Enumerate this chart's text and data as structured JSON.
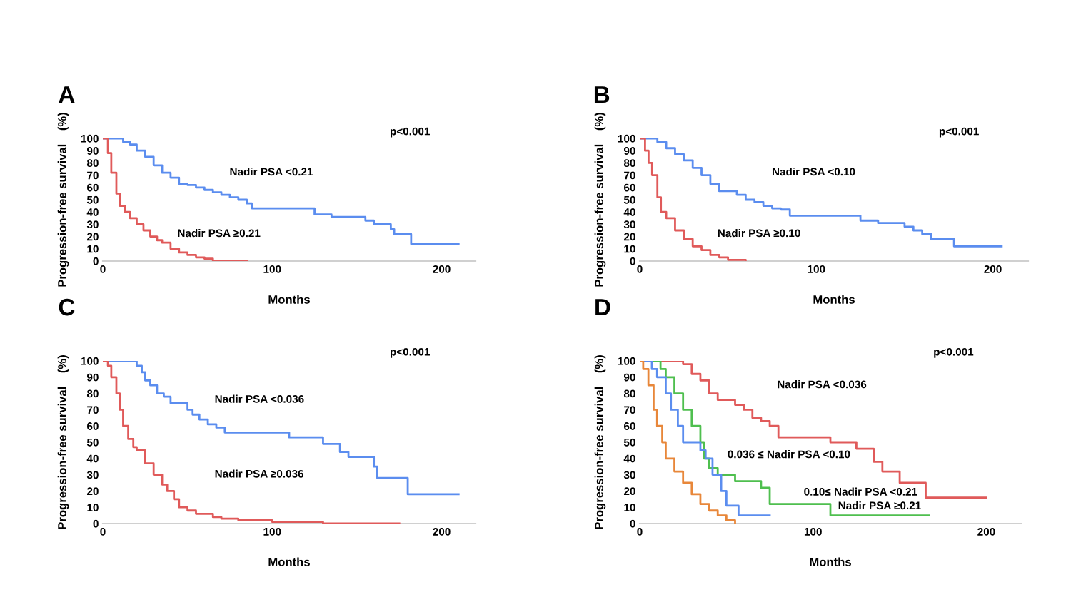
{
  "chart_data": [
    {
      "type": "step",
      "title": "A",
      "xlabel": "Months",
      "ylabel": "Progression-free survival    (%)",
      "xlim": [
        0,
        220
      ],
      "ylim": [
        0,
        100
      ],
      "xticks": [
        0,
        100,
        200
      ],
      "yticks": [
        0,
        10,
        20,
        30,
        40,
        50,
        60,
        70,
        80,
        90,
        100
      ],
      "series": [
        {
          "color": "#5b8def",
          "x": [
            0,
            8,
            12,
            16,
            20,
            25,
            30,
            35,
            40,
            45,
            50,
            55,
            60,
            65,
            70,
            75,
            80,
            85,
            88,
            125,
            135,
            155,
            160,
            170,
            172,
            182,
            210
          ],
          "values": [
            100,
            100,
            97,
            95,
            90,
            85,
            78,
            72,
            68,
            63,
            62,
            60,
            58,
            56,
            54,
            52,
            50,
            47,
            43,
            38,
            36,
            33,
            30,
            26,
            22,
            14,
            14
          ]
        },
        {
          "color": "#e05a5a",
          "x": [
            0,
            3,
            5,
            8,
            10,
            13,
            16,
            20,
            24,
            28,
            32,
            35,
            40,
            45,
            50,
            55,
            60,
            65,
            85
          ],
          "values": [
            100,
            88,
            72,
            55,
            45,
            40,
            35,
            30,
            25,
            20,
            17,
            15,
            10,
            7,
            5,
            3,
            2,
            0,
            0
          ]
        }
      ],
      "annotations": [
        "p<0.001",
        "Nadir PSA <0.21",
        "Nadir PSA ≥0.21"
      ]
    },
    {
      "type": "step",
      "title": "B",
      "xlabel": "Months",
      "ylabel": "Progression-free survival    (%)",
      "xlim": [
        0,
        220
      ],
      "ylim": [
        0,
        100
      ],
      "xticks": [
        0,
        100,
        200
      ],
      "yticks": [
        0,
        10,
        20,
        30,
        40,
        50,
        60,
        70,
        80,
        90,
        100
      ],
      "series": [
        {
          "color": "#5b8def",
          "x": [
            0,
            5,
            10,
            15,
            20,
            25,
            30,
            35,
            40,
            45,
            55,
            60,
            65,
            70,
            75,
            80,
            85,
            125,
            135,
            150,
            155,
            160,
            165,
            178,
            205
          ],
          "values": [
            100,
            100,
            97,
            92,
            87,
            82,
            76,
            70,
            63,
            57,
            54,
            50,
            48,
            45,
            43,
            42,
            37,
            33,
            31,
            28,
            25,
            22,
            18,
            12,
            12
          ]
        },
        {
          "color": "#e05a5a",
          "x": [
            0,
            3,
            5,
            7,
            10,
            12,
            15,
            20,
            25,
            30,
            35,
            40,
            45,
            50,
            60
          ],
          "values": [
            100,
            90,
            80,
            70,
            52,
            40,
            35,
            25,
            18,
            12,
            9,
            5,
            3,
            1,
            0
          ]
        }
      ],
      "annotations": [
        "p<0.001",
        "Nadir PSA <0.10",
        "Nadir PSA ≥0.10"
      ]
    },
    {
      "type": "step",
      "title": "C",
      "xlabel": "Months",
      "ylabel": "Progression-free survival    (%)",
      "xlim": [
        0,
        220
      ],
      "ylim": [
        0,
        100
      ],
      "xticks": [
        0,
        100,
        200
      ],
      "yticks": [
        0,
        10,
        20,
        30,
        40,
        50,
        60,
        70,
        80,
        90,
        100
      ],
      "series": [
        {
          "color": "#5b8def",
          "x": [
            0,
            15,
            20,
            23,
            25,
            28,
            32,
            36,
            40,
            50,
            53,
            57,
            62,
            67,
            72,
            110,
            130,
            140,
            145,
            160,
            162,
            165,
            180,
            210
          ],
          "values": [
            100,
            100,
            97,
            93,
            88,
            85,
            80,
            78,
            74,
            70,
            67,
            64,
            61,
            59,
            56,
            53,
            49,
            44,
            41,
            35,
            28,
            28,
            18,
            18
          ]
        },
        {
          "color": "#e05a5a",
          "x": [
            0,
            3,
            5,
            8,
            10,
            12,
            15,
            18,
            20,
            25,
            30,
            35,
            38,
            42,
            45,
            50,
            55,
            65,
            70,
            80,
            100,
            130,
            175
          ],
          "values": [
            100,
            97,
            90,
            80,
            70,
            60,
            52,
            47,
            45,
            37,
            30,
            24,
            20,
            15,
            10,
            8,
            6,
            4,
            3,
            2,
            1,
            0,
            0
          ]
        }
      ],
      "annotations": [
        "p<0.001",
        "Nadir PSA <0.036",
        "Nadir PSA ≥0.036"
      ]
    },
    {
      "type": "step",
      "title": "D",
      "xlabel": "Months",
      "ylabel": "Progression-free survival    (%)",
      "xlim": [
        0,
        220
      ],
      "ylim": [
        0,
        100
      ],
      "xticks": [
        0,
        100,
        200
      ],
      "yticks": [
        0,
        10,
        20,
        30,
        40,
        50,
        60,
        70,
        80,
        90,
        100
      ],
      "series": [
        {
          "color": "#e05a5a",
          "x": [
            0,
            15,
            25,
            30,
            35,
            40,
            45,
            55,
            60,
            65,
            70,
            75,
            80,
            110,
            125,
            135,
            140,
            150,
            155,
            165,
            200
          ],
          "values": [
            100,
            100,
            98,
            92,
            88,
            80,
            76,
            73,
            70,
            65,
            63,
            60,
            53,
            50,
            46,
            38,
            32,
            25,
            25,
            16,
            16
          ]
        },
        {
          "color": "#4fbf4f",
          "x": [
            0,
            8,
            12,
            15,
            20,
            25,
            30,
            35,
            37,
            40,
            45,
            55,
            70,
            75,
            110,
            167
          ],
          "values": [
            100,
            100,
            95,
            90,
            80,
            70,
            60,
            50,
            40,
            34,
            30,
            26,
            22,
            12,
            5,
            5
          ]
        },
        {
          "color": "#5b8def",
          "x": [
            0,
            3,
            7,
            10,
            15,
            18,
            22,
            25,
            35,
            38,
            42,
            47,
            50,
            57,
            75
          ],
          "values": [
            100,
            100,
            95,
            90,
            80,
            70,
            60,
            50,
            45,
            40,
            30,
            20,
            11,
            5,
            5
          ]
        },
        {
          "color": "#e8873a",
          "x": [
            0,
            2,
            5,
            8,
            10,
            13,
            15,
            20,
            25,
            30,
            35,
            40,
            45,
            50,
            55
          ],
          "values": [
            100,
            95,
            85,
            70,
            60,
            50,
            40,
            32,
            25,
            18,
            12,
            8,
            5,
            2,
            0
          ]
        }
      ],
      "annotations": [
        "p<0.001",
        "Nadir PSA <0.036",
        "0.036 ≤ Nadir PSA <0.10",
        "0.10≤ Nadir PSA <0.21",
        "Nadir PSA ≥0.21"
      ]
    }
  ]
}
